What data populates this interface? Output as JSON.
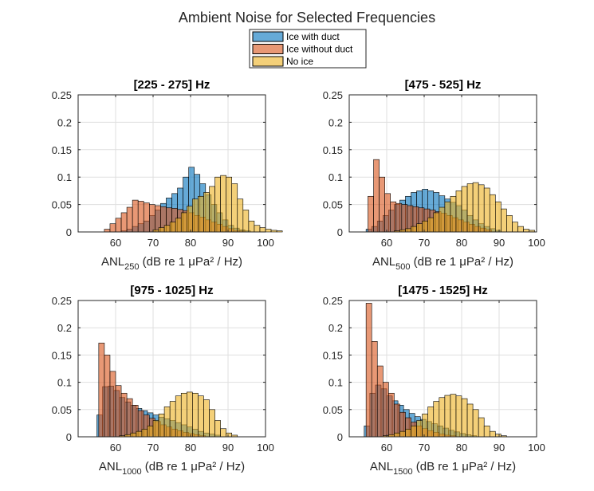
{
  "figure_title": "Ambient Noise for Selected Frequencies",
  "legend": {
    "placement": "top-center",
    "entries": [
      {
        "label": "Ice with duct",
        "color": "#0072BD"
      },
      {
        "label": "Ice without duct",
        "color": "#D95319"
      },
      {
        "label": "No ice",
        "color": "#EDB120"
      }
    ]
  },
  "chart_data": [
    {
      "type": "bar",
      "title": "[225 - 275] Hz",
      "xlabel": {
        "main": "ANL",
        "sub": "250",
        "rest": "(dB re 1 μPa² / Hz)"
      },
      "xlim": [
        50,
        100
      ],
      "ylim": [
        0,
        0.25
      ],
      "xticks": [
        60,
        70,
        80,
        90,
        100
      ],
      "yticks": [
        0,
        0.05,
        0.1,
        0.15,
        0.2,
        0.25
      ],
      "bin_width": 1.5,
      "grid": true,
      "series": [
        {
          "name": "Ice with duct",
          "x0": 61.5,
          "values": [
            0.002,
            0.005,
            0.01,
            0.015,
            0.02,
            0.03,
            0.04,
            0.052,
            0.062,
            0.07,
            0.08,
            0.1,
            0.118,
            0.105,
            0.088,
            0.068,
            0.05,
            0.035,
            0.022,
            0.012,
            0.007,
            0.004,
            0.002
          ]
        },
        {
          "name": "Ice without duct",
          "x0": 57,
          "values": [
            0.005,
            0.015,
            0.025,
            0.035,
            0.045,
            0.058,
            0.056,
            0.053,
            0.05,
            0.048,
            0.046,
            0.044,
            0.043,
            0.041,
            0.039,
            0.035,
            0.03,
            0.027,
            0.022,
            0.018,
            0.014,
            0.01,
            0.006,
            0.003,
            0.002
          ]
        },
        {
          "name": "No ice",
          "x0": 70,
          "values": [
            0.004,
            0.008,
            0.012,
            0.018,
            0.025,
            0.035,
            0.047,
            0.06,
            0.065,
            0.072,
            0.083,
            0.1,
            0.103,
            0.1,
            0.088,
            0.06,
            0.04,
            0.02,
            0.012,
            0.008,
            0.005,
            0.003,
            0.002
          ]
        }
      ]
    },
    {
      "type": "bar",
      "title": "[475 - 525] Hz",
      "xlabel": {
        "main": "ANL",
        "sub": "500",
        "rest": "(dB re 1 μPa² / Hz)"
      },
      "xlim": [
        50,
        100
      ],
      "ylim": [
        0,
        0.25
      ],
      "xticks": [
        60,
        70,
        80,
        90,
        100
      ],
      "yticks": [
        0,
        0.05,
        0.1,
        0.15,
        0.2,
        0.25
      ],
      "bin_width": 1.5,
      "grid": true,
      "series": [
        {
          "name": "Ice with duct",
          "x0": 54.5,
          "values": [
            0.005,
            0.01,
            0.02,
            0.03,
            0.04,
            0.05,
            0.058,
            0.065,
            0.072,
            0.075,
            0.078,
            0.075,
            0.072,
            0.066,
            0.06,
            0.054,
            0.048,
            0.04,
            0.03,
            0.022,
            0.015,
            0.01,
            0.006,
            0.003
          ]
        },
        {
          "name": "Ice without duct",
          "x0": 55,
          "values": [
            0.065,
            0.132,
            0.1,
            0.07,
            0.055,
            0.052,
            0.05,
            0.048,
            0.046,
            0.044,
            0.042,
            0.04,
            0.037,
            0.034,
            0.03,
            0.026,
            0.022,
            0.018,
            0.014,
            0.01,
            0.007,
            0.004
          ]
        },
        {
          "name": "No ice",
          "x0": 62,
          "values": [
            0.002,
            0.004,
            0.006,
            0.01,
            0.015,
            0.02,
            0.026,
            0.035,
            0.045,
            0.055,
            0.065,
            0.075,
            0.083,
            0.088,
            0.09,
            0.086,
            0.08,
            0.068,
            0.055,
            0.042,
            0.03,
            0.018,
            0.01,
            0.005,
            0.003
          ]
        }
      ]
    },
    {
      "type": "bar",
      "title": "[975 - 1025] Hz",
      "xlabel": {
        "main": "ANL",
        "sub": "1000",
        "rest": "(dB re 1 μPa² / Hz)"
      },
      "xlim": [
        50,
        100
      ],
      "ylim": [
        0,
        0.25
      ],
      "xticks": [
        60,
        70,
        80,
        90,
        100
      ],
      "yticks": [
        0,
        0.05,
        0.1,
        0.15,
        0.2,
        0.25
      ],
      "bin_width": 1.5,
      "grid": true,
      "series": [
        {
          "name": "Ice with duct",
          "x0": 55,
          "values": [
            0.04,
            0.092,
            0.093,
            0.085,
            0.072,
            0.064,
            0.058,
            0.052,
            0.048,
            0.044,
            0.04,
            0.036,
            0.033,
            0.03,
            0.026,
            0.022,
            0.018,
            0.014,
            0.01,
            0.007,
            0.005,
            0.003
          ]
        },
        {
          "name": "Ice without duct",
          "x0": 55.5,
          "values": [
            0.172,
            0.15,
            0.12,
            0.094,
            0.08,
            0.07,
            0.058,
            0.048,
            0.04,
            0.034,
            0.028,
            0.022,
            0.018,
            0.014,
            0.011,
            0.008,
            0.006,
            0.004,
            0.002
          ]
        },
        {
          "name": "No ice",
          "x0": 61,
          "values": [
            0.002,
            0.004,
            0.007,
            0.01,
            0.014,
            0.02,
            0.03,
            0.042,
            0.055,
            0.065,
            0.075,
            0.08,
            0.082,
            0.08,
            0.075,
            0.068,
            0.05,
            0.03,
            0.015,
            0.007,
            0.003
          ]
        }
      ]
    },
    {
      "type": "bar",
      "title": "[1475 - 1525] Hz",
      "xlabel": {
        "main": "ANL",
        "sub": "1500",
        "rest": "(dB re 1 μPa² / Hz)"
      },
      "xlim": [
        50,
        100
      ],
      "ylim": [
        0,
        0.25
      ],
      "xticks": [
        60,
        70,
        80,
        90,
        100
      ],
      "yticks": [
        0,
        0.05,
        0.1,
        0.15,
        0.2,
        0.25
      ],
      "bin_width": 1.5,
      "grid": true,
      "series": [
        {
          "name": "Ice with duct",
          "x0": 54,
          "values": [
            0.02,
            0.08,
            0.095,
            0.088,
            0.075,
            0.066,
            0.058,
            0.05,
            0.043,
            0.037,
            0.032,
            0.028,
            0.024,
            0.02,
            0.016,
            0.012,
            0.009,
            0.006,
            0.004,
            0.002
          ]
        },
        {
          "name": "Ice without duct",
          "x0": 54.5,
          "values": [
            0.245,
            0.175,
            0.13,
            0.1,
            0.08,
            0.06,
            0.045,
            0.035,
            0.027,
            0.02,
            0.015,
            0.011,
            0.008,
            0.005,
            0.003,
            0.002
          ]
        },
        {
          "name": "No ice",
          "x0": 59,
          "values": [
            0.002,
            0.004,
            0.007,
            0.01,
            0.014,
            0.02,
            0.03,
            0.042,
            0.055,
            0.065,
            0.072,
            0.076,
            0.078,
            0.075,
            0.07,
            0.06,
            0.05,
            0.035,
            0.02,
            0.01,
            0.005,
            0.002
          ]
        }
      ]
    }
  ]
}
